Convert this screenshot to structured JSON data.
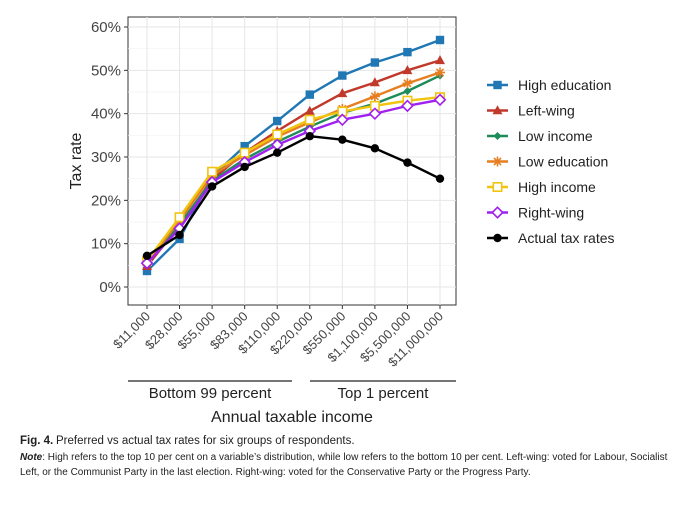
{
  "chart_data": {
    "type": "line",
    "xlabel": "Annual taxable income",
    "ylabel": "Tax rate",
    "ylim": [
      0,
      60
    ],
    "y_ticks": [
      "0%",
      "10%",
      "20%",
      "30%",
      "40%",
      "50%",
      "60%"
    ],
    "y_tick_values": [
      0,
      10,
      20,
      30,
      40,
      50,
      60
    ],
    "categories": [
      "$11,000",
      "$28,000",
      "$55,000",
      "$83,000",
      "$110,000",
      "$220,000",
      "$550,000",
      "$1,100,000",
      "$5,500,000",
      "$11,000,000"
    ],
    "grid": true,
    "legend_position": "right",
    "groups": [
      {
        "label": "Bottom 99 percent",
        "from": 0,
        "to": 4
      },
      {
        "label": "Top 1 percent",
        "from": 5,
        "to": 9
      }
    ],
    "series": [
      {
        "name": "High education",
        "color": "#1f77b4",
        "marker": "square",
        "values": [
          3.7,
          11.1,
          25.5,
          32.5,
          38.3,
          44.4,
          48.8,
          51.8,
          54.2,
          57.0
        ]
      },
      {
        "name": "Left-wing",
        "color": "#c0392b",
        "marker": "triangle",
        "values": [
          4.8,
          14.2,
          24.8,
          31.0,
          36.0,
          40.6,
          44.7,
          47.2,
          50.0,
          52.3
        ]
      },
      {
        "name": "Low income",
        "color": "#1e8c5a",
        "marker": "diamond-filled",
        "values": [
          5.8,
          14.5,
          24.5,
          29.5,
          33.5,
          37.0,
          40.2,
          42.3,
          45.2,
          48.8
        ]
      },
      {
        "name": "Low education",
        "color": "#e67e22",
        "marker": "asterisk",
        "values": [
          5.6,
          15.3,
          25.8,
          30.4,
          34.7,
          38.0,
          41.1,
          44.0,
          47.0,
          49.5
        ]
      },
      {
        "name": "High income",
        "color": "#f1c40f",
        "marker": "square-open",
        "values": [
          6.0,
          16.1,
          26.6,
          31.0,
          35.2,
          38.6,
          40.5,
          41.8,
          43.0,
          43.8
        ]
      },
      {
        "name": "Right-wing",
        "color": "#a020f0",
        "marker": "diamond-open",
        "values": [
          5.5,
          13.5,
          24.2,
          28.8,
          32.8,
          36.0,
          38.6,
          40.0,
          41.8,
          43.2
        ]
      },
      {
        "name": "Actual tax rates",
        "color": "#000000",
        "marker": "circle",
        "values": [
          7.2,
          12.0,
          23.2,
          27.7,
          31.0,
          34.8,
          34.0,
          32.0,
          28.7,
          25.0
        ]
      }
    ]
  },
  "caption": {
    "label": "Fig. 4.",
    "title": "Preferred vs actual tax rates for six groups of respondents.",
    "note_label": "Note",
    "note_text": ": High refers to the top 10 per cent on a variable’s distribution, while low refers to the bottom 10 per cent. Left-wing: voted for Labour, Socialist Left, or the Communist Party in the last election. Right-wing: voted for the Conservative Party or the Progress Party."
  }
}
